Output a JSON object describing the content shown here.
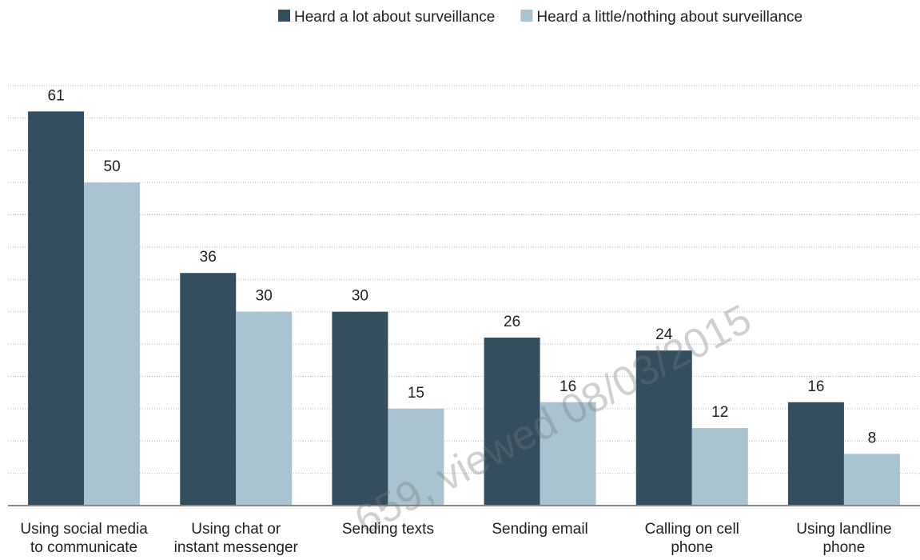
{
  "chart_data": {
    "type": "bar",
    "categories": [
      "Using social media to communicate",
      "Using chat or instant messenger",
      "Sending texts",
      "Sending email",
      "Calling on cell phone",
      "Using landline phone"
    ],
    "series": [
      {
        "name": "Heard a lot about surveillance",
        "color": "#344e60",
        "values": [
          61,
          36,
          30,
          26,
          24,
          16
        ]
      },
      {
        "name": "Heard a little/nothing about surveillance",
        "color": "#a9c3d1",
        "values": [
          50,
          30,
          15,
          16,
          12,
          8
        ]
      }
    ],
    "ylim": [
      0,
      65
    ],
    "yticks": [
      0,
      5,
      10,
      15,
      20,
      25,
      30,
      35,
      40,
      45,
      50,
      55,
      60,
      65
    ],
    "grid": true,
    "legend": "top",
    "annotation": "659, viewed 08/03/2015"
  }
}
